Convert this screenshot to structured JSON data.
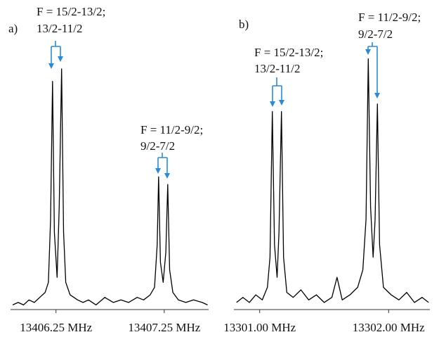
{
  "chart_data": [
    {
      "type": "line",
      "label": "a)",
      "annotations": [
        "F = 15/2-13/2;",
        "13/2-11/2",
        "F = 11/2-9/2;",
        "9/2-7/2"
      ],
      "color": "#000000",
      "x": [
        13405.85,
        13405.9,
        13405.95,
        13406.0,
        13406.05,
        13406.1,
        13406.15,
        13406.18,
        13406.2,
        13406.218,
        13406.235,
        13406.26,
        13406.28,
        13406.302,
        13406.32,
        13406.34,
        13406.38,
        13406.45,
        13406.5,
        13406.55,
        13406.62,
        13406.7,
        13406.78,
        13406.85,
        13406.92,
        13407.0,
        13407.06,
        13407.12,
        13407.16,
        13407.185,
        13407.198,
        13407.215,
        13407.24,
        13407.265,
        13407.282,
        13407.3,
        13407.33,
        13407.38,
        13407.45,
        13407.52,
        13407.6,
        13407.65
      ],
      "values": [
        0.01,
        0.02,
        0.01,
        0.03,
        0.02,
        0.04,
        0.06,
        0.1,
        0.35,
        0.9,
        0.3,
        0.12,
        0.4,
        0.95,
        0.3,
        0.1,
        0.05,
        0.03,
        0.02,
        0.03,
        0.01,
        0.04,
        0.02,
        0.03,
        0.02,
        0.04,
        0.03,
        0.05,
        0.08,
        0.25,
        0.52,
        0.18,
        0.1,
        0.22,
        0.49,
        0.15,
        0.06,
        0.03,
        0.02,
        0.03,
        0.02,
        0.01
      ],
      "xlim": [
        13405.83,
        13407.66
      ],
      "xticks": [
        {
          "value": 13406.25,
          "label": "13406.25 MHz"
        },
        {
          "value": 13407.25,
          "label": "13407.25 MHz"
        }
      ],
      "ylim": [
        0,
        1
      ]
    },
    {
      "type": "line",
      "label": "b)",
      "annotations": [
        "F = 15/2-13/2;",
        "13/2-11/2",
        "F = 11/2-9/2;",
        "9/2-7/2"
      ],
      "color": "#000000",
      "x": [
        13300.82,
        13300.87,
        13300.92,
        13300.97,
        13301.02,
        13301.06,
        13301.08,
        13301.098,
        13301.115,
        13301.135,
        13301.15,
        13301.169,
        13301.185,
        13301.21,
        13301.26,
        13301.32,
        13301.38,
        13301.44,
        13301.5,
        13301.56,
        13301.6,
        13301.64,
        13301.7,
        13301.76,
        13301.8,
        13301.825,
        13301.842,
        13301.86,
        13301.88,
        13301.895,
        13301.913,
        13301.93,
        13301.96,
        13302.02,
        13302.08,
        13302.14,
        13302.2,
        13302.26,
        13302.31
      ],
      "values": [
        0.02,
        0.04,
        0.02,
        0.05,
        0.03,
        0.08,
        0.2,
        0.78,
        0.25,
        0.12,
        0.3,
        0.78,
        0.2,
        0.06,
        0.04,
        0.07,
        0.03,
        0.05,
        0.02,
        0.04,
        0.12,
        0.03,
        0.05,
        0.08,
        0.15,
        0.35,
        0.99,
        0.4,
        0.2,
        0.35,
        0.81,
        0.25,
        0.08,
        0.05,
        0.03,
        0.06,
        0.02,
        0.04,
        0.02
      ],
      "xlim": [
        13300.8,
        13302.32
      ],
      "xticks": [
        {
          "value": 13301.0,
          "label": "13301.00 MHz"
        },
        {
          "value": 13302.0,
          "label": "13302.00 MHz"
        }
      ],
      "ylim": [
        0,
        1
      ]
    }
  ]
}
